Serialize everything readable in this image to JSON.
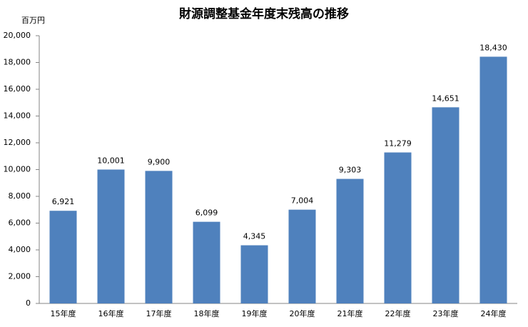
{
  "chart_data": {
    "type": "bar",
    "title": "財源調整基金年度末残高の推移",
    "y_axis_label": "百万円",
    "categories": [
      "15年度",
      "16年度",
      "17年度",
      "18年度",
      "19年度",
      "20年度",
      "21年度",
      "22年度",
      "23年度",
      "24年度"
    ],
    "values": [
      6921,
      10001,
      9900,
      6099,
      4345,
      7004,
      9303,
      11279,
      14651,
      18430
    ],
    "value_labels": [
      "6,921",
      "10,001",
      "9,900",
      "6,099",
      "4,345",
      "7,004",
      "9,303",
      "11,279",
      "14,651",
      "18,430"
    ],
    "color": "#4f81bd",
    "ylim": [
      0,
      20000
    ],
    "yticks": [
      0,
      {
        "value": 2000,
        "label": "2,000"
      },
      {
        "value": 4000,
        "label": "4,000"
      },
      {
        "value": 6000,
        "label": "6,000"
      },
      {
        "value": 8000,
        "label": "8,000"
      },
      {
        "value": 10000,
        "label": "10,000"
      },
      {
        "value": 12000,
        "label": "12,000"
      },
      {
        "value": 14000,
        "label": "14,000"
      },
      {
        "value": 16000,
        "label": "16,000"
      },
      {
        "value": 18000,
        "label": "18,000"
      },
      {
        "value": 20000,
        "label": "20,000"
      }
    ],
    "grid": false
  }
}
